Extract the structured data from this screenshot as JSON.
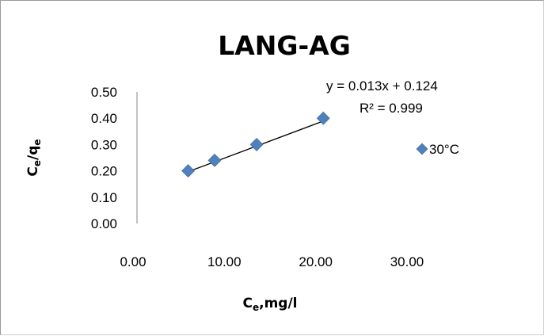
{
  "chart_data": {
    "type": "scatter",
    "title": "LANG-AG",
    "xlabel_main": "C",
    "xlabel_sub": "e",
    "xlabel_rest": ",mg/l",
    "ylabel_c": "C",
    "ylabel_sub1": "e",
    "ylabel_mid": "/q",
    "ylabel_sub2": "e",
    "xlim": [
      0,
      30
    ],
    "ylim": [
      0,
      0.5
    ],
    "x_ticks": [
      "0.00",
      "10.00",
      "20.00",
      "30.00"
    ],
    "y_ticks": [
      "0.00",
      "0.10",
      "0.20",
      "0.30",
      "0.40",
      "0.50"
    ],
    "series": [
      {
        "name": "30°C",
        "color": "#4f81bd",
        "marker": "diamond",
        "x": [
          5.6,
          8.5,
          13.1,
          20.4
        ],
        "y": [
          0.2,
          0.24,
          0.3,
          0.4
        ]
      }
    ],
    "trendline": {
      "slope": 0.013,
      "intercept": 0.124,
      "color": "#000000"
    },
    "equation_text": "y = 0.013x + 0.124",
    "r2_text": "R² = 0.999",
    "legend_position": "right",
    "grid": false
  }
}
